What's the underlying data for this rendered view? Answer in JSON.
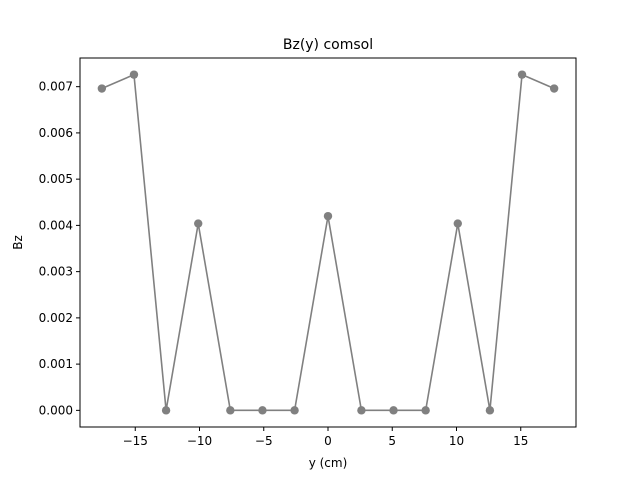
{
  "chart_data": {
    "type": "line",
    "title": "Bz(y) comsol",
    "xlabel": "y (cm)",
    "ylabel": "Bz",
    "xlim": [
      -19.3,
      19.3
    ],
    "ylim": [
      -0.00036,
      0.00762
    ],
    "xticks": [
      -15,
      -10,
      -5,
      0,
      5,
      10,
      15
    ],
    "xtick_labels": [
      "−15",
      "−10",
      "−5",
      "0",
      "5",
      "10",
      "15"
    ],
    "yticks": [
      0.0,
      0.001,
      0.002,
      0.003,
      0.004,
      0.005,
      0.006,
      0.007
    ],
    "ytick_labels": [
      "0.000",
      "0.001",
      "0.002",
      "0.003",
      "0.004",
      "0.005",
      "0.006",
      "0.007"
    ],
    "grid": false,
    "series": [
      {
        "color": "#808080",
        "marker": "circle",
        "x": [
          -17.6,
          -15.1,
          -12.6,
          -10.1,
          -7.6,
          -5.1,
          -2.6,
          0,
          2.6,
          5.1,
          7.6,
          10.1,
          12.6,
          15.1,
          17.6
        ],
        "y": [
          0.00696,
          0.00726,
          0.0,
          0.00404,
          0.0,
          0.0,
          0.0,
          0.0042,
          0.0,
          0.0,
          0.0,
          0.00404,
          0.0,
          0.00726,
          0.00696
        ]
      }
    ]
  }
}
